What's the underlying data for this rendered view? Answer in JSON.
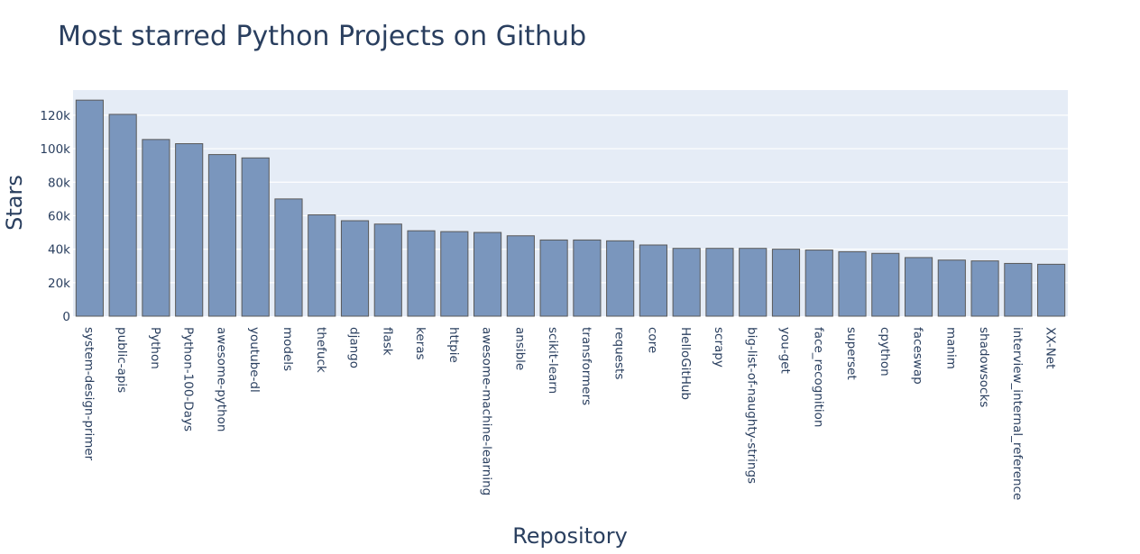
{
  "chart_data": {
    "type": "bar",
    "title": "Most starred Python Projects on Github",
    "xlabel": "Repository",
    "ylabel": "Stars",
    "ylim": [
      0,
      135000
    ],
    "yticks": [
      {
        "value": 0,
        "label": "0"
      },
      {
        "value": 20000,
        "label": "20k"
      },
      {
        "value": 40000,
        "label": "40k"
      },
      {
        "value": 60000,
        "label": "60k"
      },
      {
        "value": 80000,
        "label": "80k"
      },
      {
        "value": 100000,
        "label": "100k"
      },
      {
        "value": 120000,
        "label": "120k"
      }
    ],
    "grid": true,
    "legend": "none",
    "colors": {
      "bar": "#7a96bd",
      "plot_bg": "#e5ecf6",
      "text": "#2a3f5f"
    },
    "categories": [
      "system-design-primer",
      "public-apis",
      "Python",
      "Python-100-Days",
      "awesome-python",
      "youtube-dl",
      "models",
      "thefuck",
      "django",
      "flask",
      "keras",
      "httpie",
      "awesome-machine-learning",
      "ansible",
      "scikit-learn",
      "transformers",
      "requests",
      "core",
      "HelloGitHub",
      "scrapy",
      "big-list-of-naughty-strings",
      "you-get",
      "face_recognition",
      "superset",
      "cpython",
      "faceswap",
      "manim",
      "shadowsocks",
      "interview_internal_reference",
      "XX-Net"
    ],
    "values": [
      129000,
      120500,
      105500,
      103000,
      96500,
      94500,
      70000,
      60500,
      57000,
      55000,
      51000,
      50500,
      50000,
      48000,
      45500,
      45500,
      45000,
      42500,
      40500,
      40500,
      40500,
      40000,
      39500,
      38500,
      37500,
      35000,
      33500,
      33000,
      31500,
      31000
    ]
  }
}
